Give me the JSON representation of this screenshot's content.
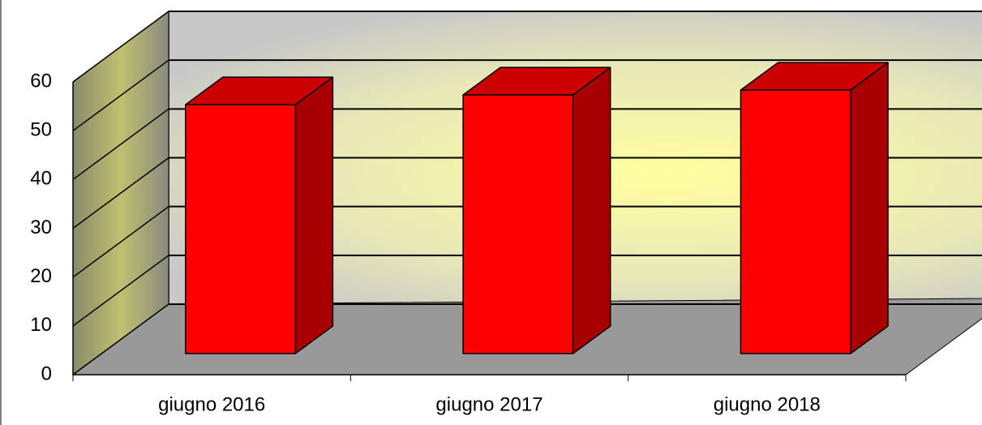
{
  "chart_data": {
    "type": "bar3d",
    "categories": [
      "giugno 2016",
      "giugno 2017",
      "giugno 2018"
    ],
    "values": [
      51,
      53,
      54
    ],
    "color": "#ff0000",
    "ylim": [
      0,
      60
    ],
    "yticks": [
      0,
      10,
      20,
      30,
      40,
      50,
      60
    ],
    "grid": true
  }
}
